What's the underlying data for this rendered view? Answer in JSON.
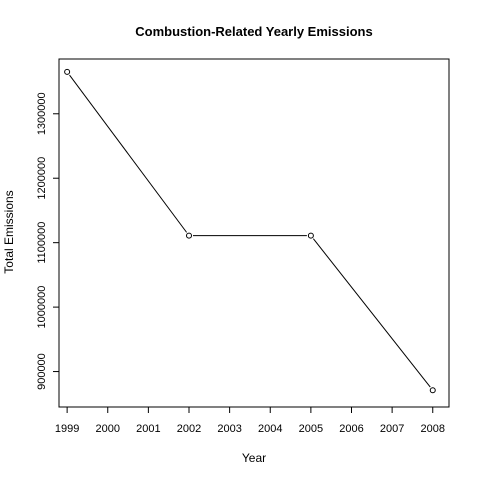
{
  "chart_data": {
    "type": "line",
    "title": "Combustion-Related Yearly Emissions",
    "xlabel": "Year",
    "ylabel": "Total Emissions",
    "x_ticks": [
      "1999",
      "2000",
      "2001",
      "2002",
      "2003",
      "2004",
      "2005",
      "2006",
      "2007",
      "2008"
    ],
    "y_ticks": [
      "900000",
      "1000000",
      "1100000",
      "1200000",
      "1300000"
    ],
    "xlim": [
      1998.8,
      2008.4
    ],
    "ylim": [
      845000,
      1385000
    ],
    "series": [
      {
        "x": [
          1999,
          2002,
          2005,
          2008
        ],
        "y": [
          1365000,
          1111000,
          1111000,
          871000
        ]
      }
    ],
    "marker": "open-circle",
    "line_color": "#000000",
    "grid": false,
    "legend": "none"
  }
}
